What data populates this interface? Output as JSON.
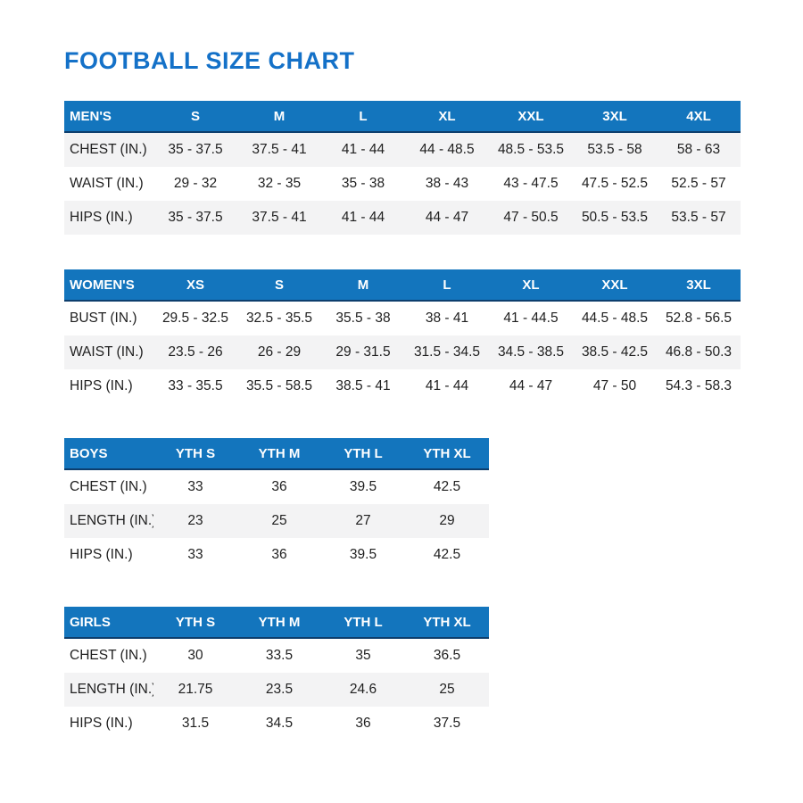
{
  "title": "FOOTBALL SIZE CHART",
  "colors": {
    "title_blue": "#1471c8",
    "accent_blue": "#1375bd",
    "header_border": "#0d3e6d",
    "row_shade": "#f3f3f4",
    "text": "#1f1f1f"
  },
  "tables": [
    {
      "name": "MEN'S",
      "columns": [
        "S",
        "M",
        "L",
        "XL",
        "XXL",
        "3XL",
        "4XL"
      ],
      "rows": [
        {
          "label": "CHEST (IN.)",
          "values": [
            "35 - 37.5",
            "37.5 - 41",
            "41 - 44",
            "44 - 48.5",
            "48.5 - 53.5",
            "53.5 - 58",
            "58 - 63"
          ]
        },
        {
          "label": "WAIST (IN.)",
          "values": [
            "29 - 32",
            "32 - 35",
            "35 - 38",
            "38 - 43",
            "43 - 47.5",
            "47.5 - 52.5",
            "52.5 - 57"
          ]
        },
        {
          "label": "HIPS (IN.)",
          "values": [
            "35 - 37.5",
            "37.5 - 41",
            "41 - 44",
            "44 - 47",
            "47 - 50.5",
            "50.5 - 53.5",
            "53.5 - 57"
          ]
        }
      ],
      "shaded_rows": [
        0,
        2
      ]
    },
    {
      "name": "WOMEN'S",
      "columns": [
        "XS",
        "S",
        "M",
        "L",
        "XL",
        "XXL",
        "3XL"
      ],
      "rows": [
        {
          "label": "BUST (IN.)",
          "values": [
            "29.5 - 32.5",
            "32.5 - 35.5",
            "35.5 - 38",
            "38 - 41",
            "41 - 44.5",
            "44.5 - 48.5",
            "52.8 - 56.5"
          ]
        },
        {
          "label": "WAIST (IN.)",
          "values": [
            "23.5 - 26",
            "26 - 29",
            "29 - 31.5",
            "31.5 - 34.5",
            "34.5 - 38.5",
            "38.5 - 42.5",
            "46.8 - 50.3"
          ]
        },
        {
          "label": "HIPS (IN.)",
          "values": [
            "33 - 35.5",
            "35.5 - 58.5",
            "38.5 - 41",
            "41 - 44",
            "44 - 47",
            "47 - 50",
            "54.3 - 58.3"
          ]
        }
      ],
      "shaded_rows": [
        1
      ]
    },
    {
      "name": "BOYS",
      "columns": [
        "YTH S",
        "YTH M",
        "YTH L",
        "YTH XL"
      ],
      "rows": [
        {
          "label": "CHEST (IN.)",
          "values": [
            "33",
            "36",
            "39.5",
            "42.5"
          ]
        },
        {
          "label": "LENGTH (IN.)",
          "values": [
            "23",
            "25",
            "27",
            "29"
          ]
        },
        {
          "label": "HIPS (IN.)",
          "values": [
            "33",
            "36",
            "39.5",
            "42.5"
          ]
        }
      ],
      "shaded_rows": [
        1
      ]
    },
    {
      "name": "GIRLS",
      "columns": [
        "YTH S",
        "YTH M",
        "YTH L",
        "YTH XL"
      ],
      "rows": [
        {
          "label": "CHEST (IN.)",
          "values": [
            "30",
            "33.5",
            "35",
            "36.5"
          ]
        },
        {
          "label": "LENGTH (IN.)",
          "values": [
            "21.75",
            "23.5",
            "24.6",
            "25"
          ]
        },
        {
          "label": "HIPS (IN.)",
          "values": [
            "31.5",
            "34.5",
            "36",
            "37.5"
          ]
        }
      ],
      "shaded_rows": [
        1
      ]
    }
  ]
}
